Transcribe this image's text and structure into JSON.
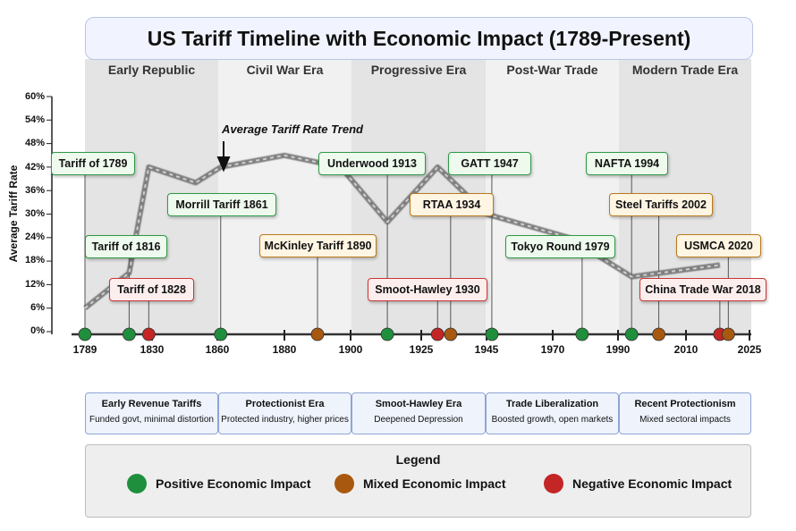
{
  "title": "US Tariff Timeline with Economic Impact (1789-Present)",
  "colors": {
    "positive": "#1f8f3d",
    "mixed": "#a8590f",
    "negative": "#c42525",
    "trend": "#666666",
    "era_dark": "#e4e4e4",
    "era_light": "#f1f1f1"
  },
  "eras": [
    {
      "label": "Early Republic",
      "start": 1789,
      "end": 1861
    },
    {
      "label": "Civil War Era",
      "start": 1861,
      "end": 1901
    },
    {
      "label": "Progressive Era",
      "start": 1901,
      "end": 1945
    },
    {
      "label": "Post-War Trade",
      "start": 1945,
      "end": 1990
    },
    {
      "label": "Modern Trade Era",
      "start": 1990,
      "end": 2025
    }
  ],
  "chart_data": {
    "type": "timeline",
    "y_axis_title": "Average Tariff Rate",
    "y_ticks": [
      "0%",
      "6%",
      "12%",
      "18%",
      "24%",
      "30%",
      "36%",
      "42%",
      "48%",
      "54%",
      "60%"
    ],
    "ylim": [
      0,
      60
    ],
    "x_ticks": [
      "1789",
      "1830",
      "1860",
      "1880",
      "1900",
      "1925",
      "1945",
      "1970",
      "1990",
      "2010",
      "2025"
    ],
    "trend_label": "Average Tariff Rate Trend",
    "trend": {
      "x": [
        1789,
        1816,
        1828,
        1850,
        1861,
        1880,
        1897,
        1913,
        1930,
        1945,
        1975,
        1994,
        2018
      ],
      "y": [
        6,
        15,
        42,
        38,
        42,
        45,
        42,
        28,
        42,
        30,
        24,
        14,
        17
      ]
    },
    "events": [
      {
        "label": "Tariff of 1789",
        "year": 1789,
        "impact": "positive"
      },
      {
        "label": "Tariff of 1816",
        "year": 1816,
        "impact": "positive"
      },
      {
        "label": "Tariff of 1828",
        "year": 1828,
        "impact": "negative"
      },
      {
        "label": "Morrill Tariff 1861",
        "year": 1861,
        "impact": "positive"
      },
      {
        "label": "McKinley Tariff 1890",
        "year": 1890,
        "impact": "mixed"
      },
      {
        "label": "Underwood 1913",
        "year": 1913,
        "impact": "positive"
      },
      {
        "label": "Smoot-Hawley 1930",
        "year": 1930,
        "impact": "negative"
      },
      {
        "label": "RTAA 1934",
        "year": 1934,
        "impact": "mixed"
      },
      {
        "label": "GATT 1947",
        "year": 1947,
        "impact": "positive"
      },
      {
        "label": "Tokyo Round 1979",
        "year": 1979,
        "impact": "positive"
      },
      {
        "label": "NAFTA 1994",
        "year": 1994,
        "impact": "positive"
      },
      {
        "label": "Steel Tariffs 2002",
        "year": 2002,
        "impact": "mixed"
      },
      {
        "label": "China Trade War 2018",
        "year": 2018,
        "impact": "negative"
      },
      {
        "label": "USMCA 2020",
        "year": 2020,
        "impact": "mixed"
      }
    ]
  },
  "summaries": [
    {
      "title": "Early Revenue Tariffs",
      "desc": "Funded govt, minimal distortion"
    },
    {
      "title": "Protectionist Era",
      "desc": "Protected industry, higher prices"
    },
    {
      "title": "Smoot-Hawley Era",
      "desc": "Deepened Depression"
    },
    {
      "title": "Trade Liberalization",
      "desc": "Boosted growth, open markets"
    },
    {
      "title": "Recent Protectionism",
      "desc": "Mixed sectoral impacts"
    }
  ],
  "legend": {
    "title": "Legend",
    "items": [
      {
        "label": "Positive Economic Impact",
        "impact": "positive"
      },
      {
        "label": "Mixed Economic Impact",
        "impact": "mixed"
      },
      {
        "label": "Negative Economic Impact",
        "impact": "negative"
      }
    ]
  }
}
